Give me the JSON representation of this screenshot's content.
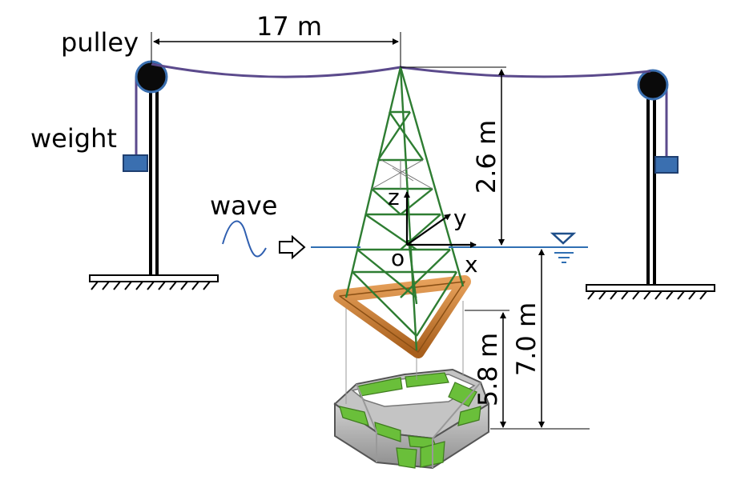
{
  "labels": {
    "pulley": "pulley",
    "weight": "weight",
    "wave": "wave",
    "span": "17 m",
    "tower_height": "2.6 m",
    "depth_total": "7.0 m",
    "depth_mid": "5.8 m",
    "axis_x": "x",
    "axis_y": "y",
    "axis_z": "z",
    "origin": "o"
  },
  "colors": {
    "cable": "#5b4a8c",
    "tower": "#2e7d32",
    "pontoon": "#c87a2a",
    "water": "#2f6fb3",
    "weight": "#3a6fb0",
    "tank_green": "#6abf3a",
    "tank_gray": "#a8a8a8"
  },
  "icons": {
    "water_level": "water-level-icon",
    "wave": "wave-icon",
    "arrow": "arrow-right-icon"
  }
}
